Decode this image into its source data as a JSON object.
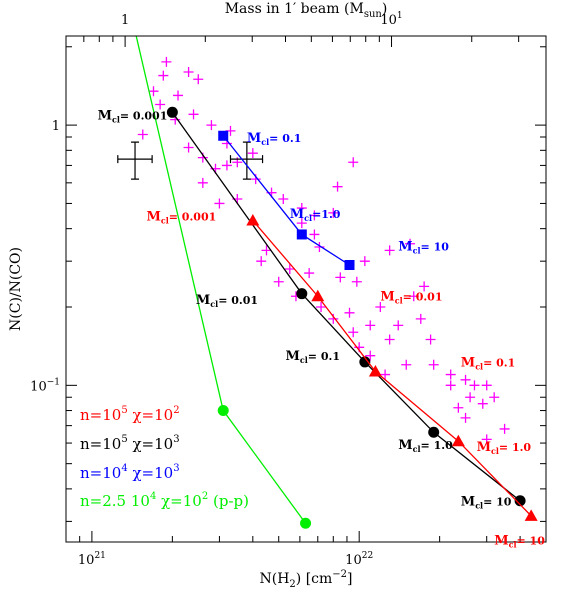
{
  "chart_data": {
    "type": "scatter",
    "title": "",
    "xlabel": "N(H₂) [cm⁻²]",
    "ylabel": "N(C)/N(CO)",
    "x2label": "Mass in 1′ beam (M",
    "x2label_sub": "sun",
    "x2label_end": ")",
    "xscale": "log",
    "yscale": "log",
    "xlim": [
      8e+20,
      5e+22
    ],
    "ylim": [
      0.025,
      2.2
    ],
    "x_major_ticks": [
      {
        "value": 1e+21,
        "base": "10",
        "exp": "21"
      },
      {
        "value": 1e+22,
        "base": "10",
        "exp": "22"
      }
    ],
    "y_major_ticks": [
      {
        "value": 1,
        "base": "1",
        "exp": ""
      },
      {
        "value": 0.1,
        "base": "10",
        "exp": "−1"
      }
    ],
    "top_axis": {
      "scale": "log",
      "lim": [
        0.6,
        38
      ],
      "major_ticks": [
        {
          "value": 1,
          "base": "1",
          "exp": ""
        },
        {
          "value": 10,
          "base": "10",
          "exp": "1"
        }
      ]
    },
    "observations": {
      "marker": "plus",
      "color": "#ff00ff",
      "points": [
        [
          1.9e+21,
          1.75
        ],
        [
          1.85e+21,
          1.55
        ],
        [
          2.3e+21,
          1.6
        ],
        [
          1.7e+21,
          1.35
        ],
        [
          2.1e+21,
          1.3
        ],
        [
          2.5e+21,
          1.5
        ],
        [
          1.8e+21,
          1.2
        ],
        [
          2.05e+21,
          1.05
        ],
        [
          2.4e+21,
          1.1
        ],
        [
          2.8e+21,
          1.0
        ],
        [
          1.55e+21,
          0.92
        ],
        [
          2.3e+21,
          0.82
        ],
        [
          2.6e+21,
          0.75
        ],
        [
          2.9e+21,
          0.68
        ],
        [
          3.2e+21,
          0.7
        ],
        [
          3.5e+21,
          0.72
        ],
        [
          3.2e+21,
          0.85
        ],
        [
          3.3e+21,
          0.95
        ],
        [
          4e+21,
          0.78
        ],
        [
          2.6e+21,
          0.6
        ],
        [
          3.5e+21,
          0.52
        ],
        [
          3e+21,
          0.5
        ],
        [
          4.1e+21,
          0.62
        ],
        [
          4.7e+21,
          0.55
        ],
        [
          5.2e+21,
          0.52
        ],
        [
          6.1e+21,
          0.48
        ],
        [
          6.8e+21,
          0.45
        ],
        [
          8.3e+21,
          0.58
        ],
        [
          9.5e+21,
          0.72
        ],
        [
          8e+21,
          0.46
        ],
        [
          6.1e+21,
          0.42
        ],
        [
          6.8e+21,
          0.38
        ],
        [
          7.1e+21,
          0.34
        ],
        [
          4.5e+21,
          0.33
        ],
        [
          4.3e+21,
          0.3
        ],
        [
          5.5e+21,
          0.28
        ],
        [
          6.5e+21,
          0.27
        ],
        [
          5e+21,
          0.25
        ],
        [
          5.8e+21,
          0.22
        ],
        [
          7.2e+21,
          0.2
        ],
        [
          8.5e+21,
          0.26
        ],
        [
          9.8e+21,
          0.25
        ],
        [
          1.05e+22,
          0.3
        ],
        [
          1.3e+22,
          0.33
        ],
        [
          1.55e+22,
          0.35
        ],
        [
          8e+21,
          0.18
        ],
        [
          9.5e+21,
          0.16
        ],
        [
          9.2e+21,
          0.19
        ],
        [
          1.1e+22,
          0.17
        ],
        [
          1.2e+22,
          0.2
        ],
        [
          1.6e+22,
          0.22
        ],
        [
          1.75e+22,
          0.24
        ],
        [
          1.3e+22,
          0.15
        ],
        [
          1.4e+22,
          0.17
        ],
        [
          1.7e+22,
          0.18
        ],
        [
          1.85e+22,
          0.15
        ],
        [
          1.1e+22,
          0.13
        ],
        [
          1e+22,
          0.14
        ],
        [
          1.25e+22,
          0.11
        ],
        [
          1.5e+22,
          0.12
        ],
        [
          1.9e+22,
          0.12
        ],
        [
          2.2e+22,
          0.11
        ],
        [
          2.5e+22,
          0.105
        ],
        [
          2.7e+22,
          0.1
        ],
        [
          3e+22,
          0.1
        ],
        [
          2.9e+22,
          0.085
        ],
        [
          3.2e+22,
          0.09
        ],
        [
          2.6e+22,
          0.09
        ],
        [
          2.35e+22,
          0.082
        ],
        [
          2.5e+22,
          0.075
        ],
        [
          3.5e+22,
          0.068
        ],
        [
          3e+22,
          0.062
        ],
        [
          2.2e+22,
          0.1
        ]
      ]
    },
    "error_bars": [
      {
        "x": 1.45e+21,
        "y": 0.74,
        "xlo": 1.25e+21,
        "xhi": 1.68e+21,
        "ylo": 0.62,
        "yhi": 0.86
      },
      {
        "x": 3.8e+21,
        "y": 0.74,
        "xlo": 3.3e+21,
        "xhi": 4.35e+21,
        "ylo": 0.62,
        "yhi": 0.86
      }
    ],
    "series": [
      {
        "label": "n=10⁴ χ=10³",
        "color": "#0000ff",
        "marker": "square",
        "x": [
          3.1e+21,
          6.1e+21,
          9.2e+21
        ],
        "y": [
          0.91,
          0.38,
          0.29
        ]
      },
      {
        "label": "n=10⁵ χ=10³",
        "color": "#000000",
        "marker": "circle",
        "x": [
          2e+21,
          6.1e+21,
          1.05e+22,
          1.9e+22,
          4e+22
        ],
        "y": [
          1.12,
          0.225,
          0.123,
          0.066,
          0.036
        ]
      },
      {
        "label": "n=10⁵ χ=10²",
        "color": "#ff0000",
        "marker": "triangle",
        "x": [
          4e+21,
          7e+21,
          1.15e+22,
          2.35e+22,
          4.4e+22
        ],
        "y": [
          0.43,
          0.22,
          0.113,
          0.061,
          0.0315
        ]
      },
      {
        "label": "n=2.5 10⁴ χ=10² (p-p)",
        "color": "#00ee00",
        "marker": "circle",
        "x": [
          1.45e+21,
          3.1e+21,
          6.3e+21
        ],
        "y": [
          2.3,
          0.08,
          0.0295
        ],
        "markers_from_index": 1
      }
    ],
    "annotations": [
      {
        "color": "#000000",
        "x": 1.05e+21,
        "y": 1.05,
        "main": "M",
        "sub": "cl",
        "value": "= 0.001"
      },
      {
        "color": "#0000ff",
        "x": 3.8e+21,
        "y": 0.86,
        "main": "M",
        "sub": "cl",
        "value": "= 0.1"
      },
      {
        "color": "#ff0000",
        "x": 1.6e+21,
        "y": 0.43,
        "main": "M",
        "sub": "cl",
        "value": "= 0.001"
      },
      {
        "color": "#0000ff",
        "x": 5.5e+21,
        "y": 0.44,
        "main": "M",
        "sub": "cl",
        "value": "=1.0"
      },
      {
        "color": "#0000ff",
        "x": 1.4e+22,
        "y": 0.33,
        "main": "M",
        "sub": "cl",
        "value": "= 10"
      },
      {
        "color": "#ff0000",
        "x": 1.2e+22,
        "y": 0.212,
        "main": "M",
        "sub": "cl",
        "value": "= 0.01"
      },
      {
        "color": "#000000",
        "x": 2.45e+21,
        "y": 0.205,
        "main": "M",
        "sub": "cl",
        "value": "= 0.01"
      },
      {
        "color": "#000000",
        "x": 5.3e+21,
        "y": 0.125,
        "main": "M",
        "sub": "cl",
        "value": "= 0.1"
      },
      {
        "color": "#ff0000",
        "x": 2.4e+22,
        "y": 0.118,
        "main": "M",
        "sub": "cl",
        "value": "= 0.1"
      },
      {
        "color": "#000000",
        "x": 1.4e+22,
        "y": 0.057,
        "main": "M",
        "sub": "cl",
        "value": "= 1.0"
      },
      {
        "color": "#ff0000",
        "x": 2.75e+22,
        "y": 0.056,
        "main": "M",
        "sub": "cl",
        "value": "= 1.0"
      },
      {
        "color": "#000000",
        "x": 2.4e+22,
        "y": 0.0345,
        "main": "M",
        "sub": "cl",
        "value": "= 10"
      },
      {
        "color": "#ff0000",
        "x": 3.2e+22,
        "y": 0.0245,
        "main": "M",
        "sub": "cl",
        "value": "= 10"
      }
    ],
    "legend": {
      "placement": "bottom-left",
      "entries": [
        {
          "color": "#ff0000",
          "parts": [
            "n=10",
            "5",
            "  χ=10",
            "2",
            ""
          ]
        },
        {
          "color": "#000000",
          "parts": [
            "n=10",
            "5",
            "  χ=10",
            "3",
            ""
          ]
        },
        {
          "color": "#0000ff",
          "parts": [
            "n=10",
            "4",
            "  χ=10",
            "3",
            ""
          ]
        },
        {
          "color": "#00ee00",
          "parts": [
            "n=2.5 10",
            "4",
            "  χ=10",
            "2",
            " (p-p)"
          ]
        }
      ]
    }
  }
}
